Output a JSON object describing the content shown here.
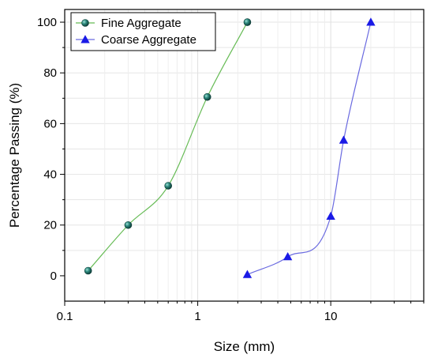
{
  "chart_data": {
    "type": "line",
    "xlabel": "Size (mm)",
    "ylabel": "Percentage Passing (%)",
    "x_scale": "log",
    "xlim": [
      0.1,
      50
    ],
    "ylim": [
      -10,
      105
    ],
    "x_ticks": [
      0.1,
      1,
      10
    ],
    "x_tick_labels": [
      "0.1",
      "1",
      "10"
    ],
    "y_ticks": [
      0,
      20,
      40,
      60,
      80,
      100
    ],
    "y_tick_labels": [
      "0",
      "20",
      "40",
      "60",
      "80",
      "100"
    ],
    "grid": true,
    "legend_position": "top-left",
    "series": [
      {
        "name": "Fine Aggregate",
        "marker": "sphere",
        "line_color": "#66bb55",
        "marker_color": "#1e6b63",
        "x": [
          0.15,
          0.3,
          0.6,
          1.18,
          2.36
        ],
        "y": [
          2,
          20,
          35.5,
          70.5,
          100
        ]
      },
      {
        "name": "Coarse Aggregate",
        "marker": "triangle",
        "line_color": "#6a6ae0",
        "marker_color": "#1a1ae6",
        "x": [
          2.36,
          4.75,
          10,
          12.5,
          20
        ],
        "y": [
          0.5,
          7.5,
          23.5,
          53.5,
          100
        ]
      }
    ]
  }
}
